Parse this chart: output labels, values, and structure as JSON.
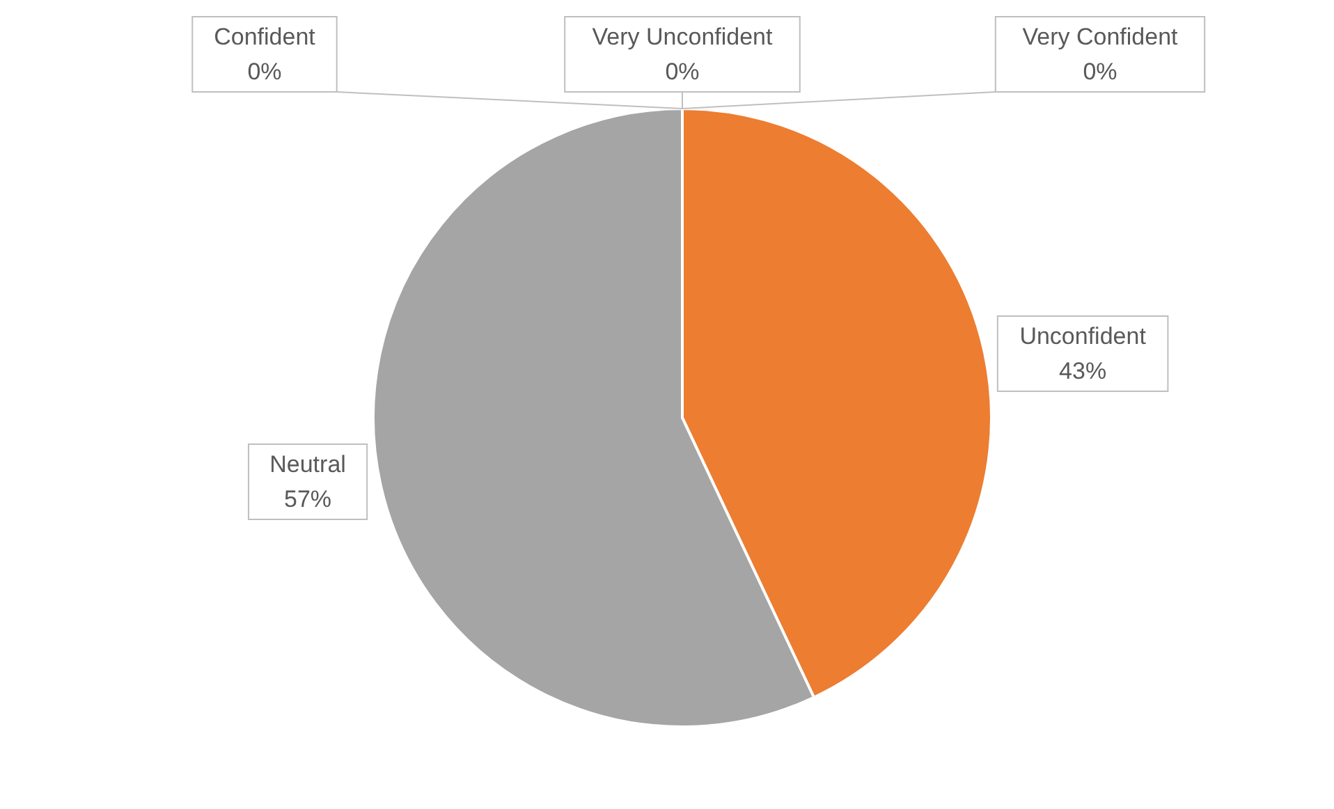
{
  "chart_data": {
    "type": "pie",
    "categories": [
      "Very Unconfident",
      "Unconfident",
      "Neutral",
      "Confident",
      "Very Confident"
    ],
    "values": [
      0,
      43,
      57,
      0,
      0
    ],
    "colors": [
      "#4472c4",
      "#ed7d31",
      "#a5a5a5",
      "#ffc000",
      "#5b9bd5"
    ],
    "value_labels": [
      "0%",
      "43%",
      "57%",
      "0%",
      "0%"
    ]
  }
}
